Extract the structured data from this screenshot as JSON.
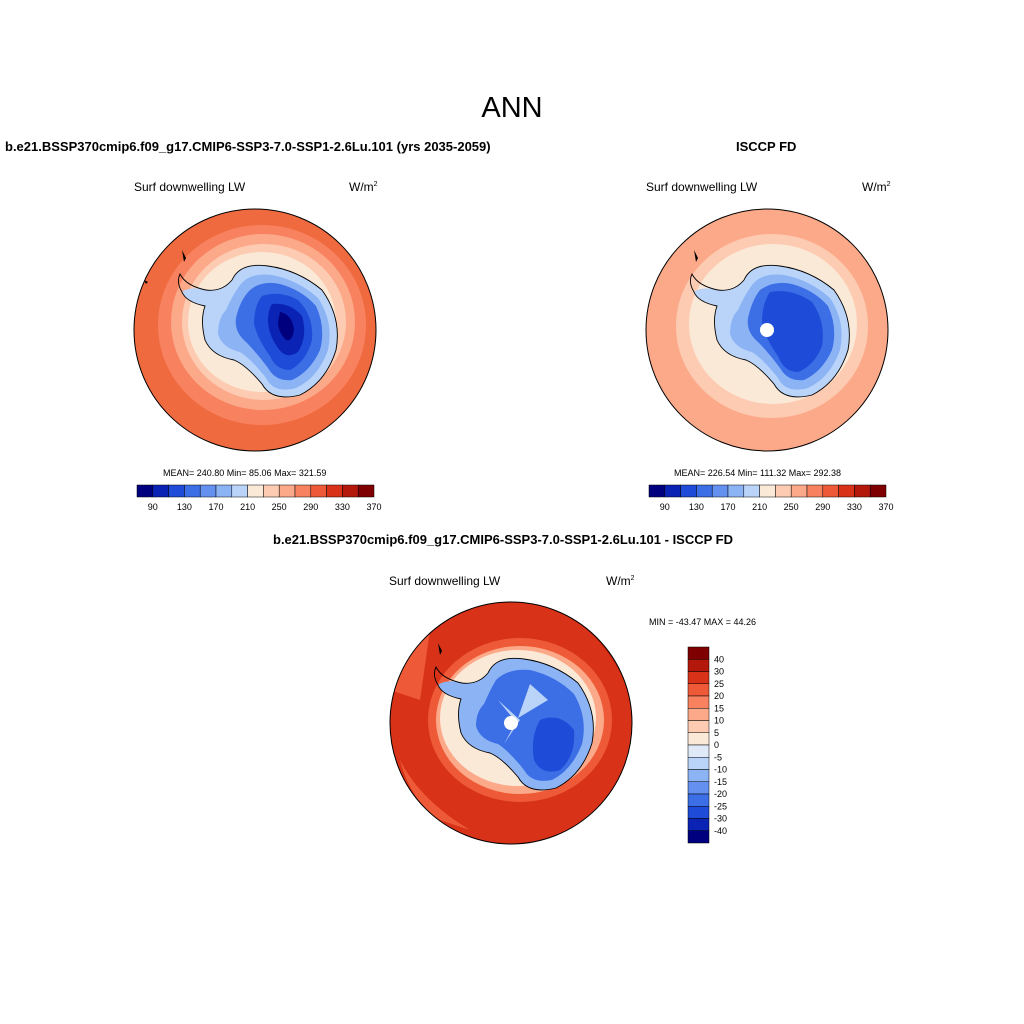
{
  "title": "ANN",
  "panels": [
    {
      "heading": "b.e21.BSSP370cmip6.f09_g17.CMIP6-SSP3-7.0-SSP1-2.6Lu.101 (yrs 2035-2059)",
      "variable": "Surf downwelling LW",
      "unit_base": "W/m",
      "unit_exp": "2",
      "stats": "MEAN= 240.80  Min=  85.06  Max= 321.59",
      "colorbar_ticks": [
        "90",
        "130",
        "170",
        "210",
        "250",
        "290",
        "330",
        "370"
      ]
    },
    {
      "heading": "ISCCP FD",
      "variable": "Surf downwelling LW",
      "unit_base": "W/m",
      "unit_exp": "2",
      "stats": "MEAN= 226.54  Min= 111.32  Max= 292.38",
      "colorbar_ticks": [
        "90",
        "130",
        "170",
        "210",
        "250",
        "290",
        "330",
        "370"
      ]
    },
    {
      "heading": "b.e21.BSSP370cmip6.f09_g17.CMIP6-SSP3-7.0-SSP1-2.6Lu.101 - ISCCP FD",
      "variable": "Surf downwelling LW",
      "unit_base": "W/m",
      "unit_exp": "2",
      "stats": "MIN = -43.47 MAX =  44.26",
      "colorbar_ticks": [
        "40",
        "30",
        "25",
        "20",
        "15",
        "10",
        "5",
        "0",
        "-5",
        "-10",
        "-15",
        "-20",
        "-25",
        "-30",
        "-40"
      ]
    }
  ],
  "colors": {
    "abs_scale": [
      "#00007f",
      "#0a23b4",
      "#1e4bd7",
      "#3c6ee6",
      "#6491f0",
      "#8cb4f5",
      "#b9d4f8",
      "#fbe9d8",
      "#fdcbb1",
      "#fca98a",
      "#f8825f",
      "#ee5a37",
      "#d83218",
      "#b4180a",
      "#7f0000"
    ],
    "diff_scale": [
      "#7f0000",
      "#b4180a",
      "#d83218",
      "#ee5a37",
      "#f8825f",
      "#fca98a",
      "#fdcbb1",
      "#fbe9d8",
      "#dfe9f7",
      "#b9d4f8",
      "#8cb4f5",
      "#6491f0",
      "#3c6ee6",
      "#1e4bd7",
      "#0a23b4",
      "#00007f"
    ]
  }
}
